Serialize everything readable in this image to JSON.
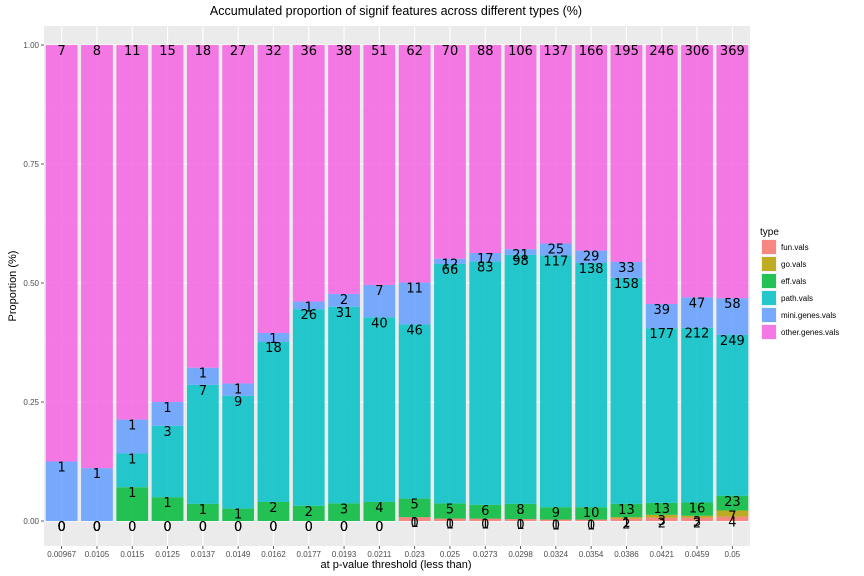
{
  "chart_data": {
    "type": "bar",
    "stacked": true,
    "title": "Accumulated proportion of signif features across different types (%)",
    "xlabel": "at p-value threshold (less than)",
    "ylabel": "Proportion (%)",
    "ylim": [
      0,
      1
    ],
    "y_ticks": [
      "0.00",
      "0.25",
      "0.50",
      "0.75",
      "1.00"
    ],
    "grid": true,
    "legend_position": "right",
    "legend_title": "type",
    "categories": [
      "0.00967",
      "0.0105",
      "0.0115",
      "0.0125",
      "0.0137",
      "0.0149",
      "0.0162",
      "0.0177",
      "0.0193",
      "0.0211",
      "0.023",
      "0.025",
      "0.0273",
      "0.0298",
      "0.0324",
      "0.0354",
      "0.0386",
      "0.0421",
      "0.0459",
      "0.05"
    ],
    "series": [
      {
        "name": "fun.vals",
        "color": "#F8766D",
        "proportions": [
          0,
          0,
          0,
          0,
          0,
          0,
          0,
          0,
          0,
          0,
          0.008,
          0.005,
          0.005,
          0.004,
          0.003,
          0.003,
          0.005,
          0.007,
          0.007,
          0.009
        ],
        "labels": [
          "0",
          "0",
          "0",
          "0",
          "0",
          "0",
          "0",
          "0",
          "0",
          "0",
          "1",
          "1",
          "1",
          "1",
          "1",
          "1",
          "2",
          "2",
          "2",
          "4"
        ]
      },
      {
        "name": "go.vals",
        "color": "#B79F00",
        "proportions": [
          0,
          0,
          0,
          0,
          0,
          0,
          0,
          0,
          0,
          0,
          0,
          0,
          0,
          0,
          0,
          0,
          0.003,
          0.006,
          0.004,
          0.013
        ],
        "labels": [
          "0",
          "0",
          "0",
          "0",
          "0",
          "0",
          "0",
          "0",
          "0",
          "0",
          "0",
          "0",
          "0",
          "0",
          "0",
          "0",
          "1",
          "3",
          "3",
          "7"
        ]
      },
      {
        "name": "eff.vals",
        "color": "#00BA38",
        "proportions": [
          0,
          0,
          0.071,
          0.05,
          0.036,
          0.026,
          0.04,
          0.032,
          0.037,
          0.04,
          0.039,
          0.032,
          0.029,
          0.032,
          0.026,
          0.026,
          0.028,
          0.025,
          0.028,
          0.031
        ],
        "labels": [
          "0",
          "0",
          "1",
          "1",
          "1",
          "1",
          "2",
          "2",
          "3",
          "4",
          "5",
          "5",
          "6",
          "8",
          "9",
          "10",
          "13",
          "13",
          "16",
          "23"
        ]
      },
      {
        "name": "path.vals",
        "color": "#00BFC4",
        "proportions": [
          0,
          0,
          0.071,
          0.15,
          0.25,
          0.237,
          0.336,
          0.413,
          0.413,
          0.388,
          0.366,
          0.503,
          0.511,
          0.523,
          0.529,
          0.513,
          0.475,
          0.367,
          0.367,
          0.338
        ],
        "labels": [
          "0",
          "0",
          "1",
          "3",
          "7",
          "9",
          "18",
          "26",
          "31",
          "40",
          "46",
          "66",
          "83",
          "98",
          "117",
          "138",
          "158",
          "177",
          "212",
          "249"
        ]
      },
      {
        "name": "mini.genes.vals",
        "color": "#619CFF",
        "proportions": [
          0.125,
          0.111,
          0.071,
          0.05,
          0.036,
          0.026,
          0.019,
          0.016,
          0.027,
          0.068,
          0.088,
          0.011,
          0.018,
          0.012,
          0.025,
          0.026,
          0.033,
          0.051,
          0.064,
          0.077
        ],
        "labels": [
          "1",
          "1",
          "1",
          "1",
          "1",
          "1",
          "1",
          "1",
          "2",
          "7",
          "11",
          "12",
          "17",
          "21",
          "25",
          "29",
          "33",
          "39",
          "47",
          "58"
        ]
      },
      {
        "name": "other.genes.vals",
        "color": "#F564E3",
        "proportions": [
          0.875,
          0.889,
          0.787,
          0.75,
          0.678,
          0.711,
          0.605,
          0.539,
          0.523,
          0.504,
          0.499,
          0.449,
          0.437,
          0.429,
          0.417,
          0.432,
          0.456,
          0.544,
          0.53,
          0.532
        ],
        "labels": [
          "7",
          "8",
          "11",
          "15",
          "18",
          "27",
          "32",
          "36",
          "38",
          "51",
          "62",
          "70",
          "88",
          "106",
          "137",
          "166",
          "195",
          "246",
          "306",
          "369"
        ]
      }
    ]
  }
}
